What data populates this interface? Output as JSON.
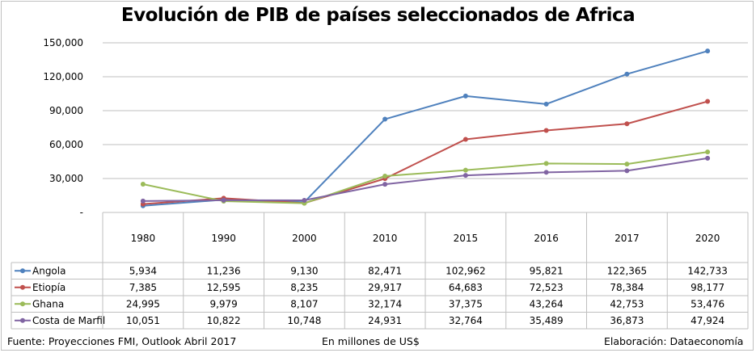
{
  "title": "Evolución de PIB de países seleccionados de Africa",
  "footer": {
    "source": "Fuente: Proyecciones FMI, Outlook Abril 2017",
    "units": "En millones de US$",
    "credit": "Elaboración: Dataeconomía"
  },
  "chart_data": {
    "type": "line",
    "title": "Evolución de PIB de países seleccionados de Africa",
    "categories": [
      "1980",
      "1990",
      "2000",
      "2010",
      "2015",
      "2016",
      "2017",
      "2020"
    ],
    "y_ticks": [
      "-",
      "30,000",
      "60,000",
      "90,000",
      "120,000",
      "150,000"
    ],
    "ylim": [
      0,
      150000
    ],
    "grid": true,
    "legend": "data-table",
    "series": [
      {
        "name": "Angola",
        "color": "#4F81BD",
        "values": [
          5934,
          11236,
          9130,
          82471,
          102962,
          95821,
          122365,
          142733
        ],
        "labels": [
          "5,934",
          "11,236",
          "9,130",
          "82,471",
          "102,962",
          "95,821",
          "122,365",
          "142,733"
        ]
      },
      {
        "name": "Etiopía",
        "color": "#C0504D",
        "values": [
          7385,
          12595,
          8235,
          29917,
          64683,
          72523,
          78384,
          98177
        ],
        "labels": [
          "7,385",
          "12,595",
          "8,235",
          "29,917",
          "64,683",
          "72,523",
          "78,384",
          "98,177"
        ]
      },
      {
        "name": "Ghana",
        "color": "#9BBB59",
        "values": [
          24995,
          9979,
          8107,
          32174,
          37375,
          43264,
          42753,
          53476
        ],
        "labels": [
          "24,995",
          "9,979",
          "8,107",
          "32,174",
          "37,375",
          "43,264",
          "42,753",
          "53,476"
        ]
      },
      {
        "name": "Costa de Marfil",
        "color": "#8064A2",
        "values": [
          10051,
          10822,
          10748,
          24931,
          32764,
          35489,
          36873,
          47924
        ],
        "labels": [
          "10,051",
          "10,822",
          "10,748",
          "24,931",
          "32,764",
          "35,489",
          "36,873",
          "47,924"
        ]
      }
    ]
  }
}
